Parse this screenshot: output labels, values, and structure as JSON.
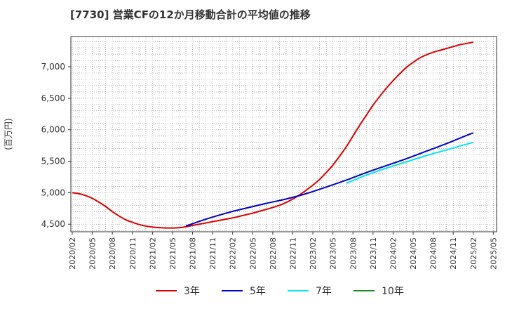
{
  "title": "[7730]  営業CFの12か月移動合計の平均値の推移",
  "colors": {
    "background": "#ffffff",
    "axis": "#333333",
    "grid": "#aaaaaa",
    "text": "#333333"
  },
  "chart_data": {
    "type": "line",
    "title": "[7730]  営業CFの12か月移動合計の平均値の推移",
    "xlabel": "",
    "ylabel": "(百万円)",
    "ylim": [
      4380,
      7480
    ],
    "y_ticks": [
      4500,
      5000,
      5500,
      6000,
      6500,
      7000
    ],
    "y_tick_labels": [
      "4,500",
      "5,000",
      "5,500",
      "6,000",
      "6,500",
      "7,000"
    ],
    "x_tick_labels": [
      "2020/02",
      "2020/05",
      "2020/08",
      "2020/11",
      "2021/02",
      "2021/05",
      "2021/08",
      "2021/11",
      "2022/02",
      "2022/05",
      "2022/08",
      "2022/11",
      "2023/02",
      "2023/05",
      "2023/08",
      "2023/11",
      "2024/02",
      "2024/05",
      "2024/08",
      "2024/11",
      "2025/02",
      "2025/05"
    ],
    "grid": true,
    "legend_position": "bottom",
    "series": [
      {
        "name": "3年",
        "color": "#dd0000",
        "x": [
          "2020/02",
          "2020/03",
          "2020/04",
          "2020/05",
          "2020/06",
          "2020/07",
          "2020/08",
          "2020/09",
          "2020/10",
          "2020/11",
          "2020/12",
          "2021/01",
          "2021/02",
          "2021/03",
          "2021/04",
          "2021/05",
          "2021/06",
          "2021/07",
          "2021/08",
          "2021/09",
          "2021/10",
          "2021/11",
          "2021/12",
          "2022/01",
          "2022/02",
          "2022/03",
          "2022/04",
          "2022/05",
          "2022/06",
          "2022/07",
          "2022/08",
          "2022/09",
          "2022/10",
          "2022/11",
          "2022/12",
          "2023/01",
          "2023/02",
          "2023/03",
          "2023/04",
          "2023/05",
          "2023/06",
          "2023/07",
          "2023/08",
          "2023/09",
          "2023/10",
          "2023/11",
          "2023/12",
          "2024/01",
          "2024/02",
          "2024/03",
          "2024/04",
          "2024/05",
          "2024/06",
          "2024/07",
          "2024/08",
          "2024/09",
          "2024/10",
          "2024/11",
          "2024/12",
          "2025/01",
          "2025/02"
        ],
        "values": [
          5000,
          4985,
          4955,
          4910,
          4850,
          4780,
          4700,
          4630,
          4570,
          4530,
          4495,
          4470,
          4455,
          4445,
          4440,
          4440,
          4445,
          4460,
          4480,
          4500,
          4520,
          4540,
          4560,
          4580,
          4600,
          4625,
          4650,
          4675,
          4705,
          4735,
          4765,
          4800,
          4845,
          4900,
          4965,
          5040,
          5120,
          5210,
          5320,
          5440,
          5580,
          5730,
          5900,
          6070,
          6230,
          6390,
          6530,
          6660,
          6780,
          6890,
          6990,
          7070,
          7140,
          7190,
          7230,
          7260,
          7290,
          7320,
          7350,
          7370,
          7390
        ]
      },
      {
        "name": "5年",
        "color": "#0000cc",
        "x": [
          "2021/07",
          "2021/10",
          "2022/01",
          "2022/04",
          "2022/07",
          "2022/10",
          "2023/01",
          "2023/04",
          "2023/07",
          "2023/10",
          "2024/01",
          "2024/04",
          "2024/07",
          "2024/10",
          "2025/01",
          "2025/02"
        ],
        "values": [
          4470,
          4580,
          4675,
          4755,
          4830,
          4900,
          4985,
          5090,
          5200,
          5320,
          5430,
          5540,
          5660,
          5780,
          5910,
          5950
        ]
      },
      {
        "name": "7年",
        "color": "#00e5ee",
        "x": [
          "2023/07",
          "2023/10",
          "2024/01",
          "2024/04",
          "2024/07",
          "2024/10",
          "2025/01",
          "2025/02"
        ],
        "values": [
          5150,
          5280,
          5390,
          5490,
          5590,
          5680,
          5770,
          5800
        ]
      },
      {
        "name": "10年",
        "color": "#228b22",
        "x": [],
        "values": []
      }
    ]
  }
}
